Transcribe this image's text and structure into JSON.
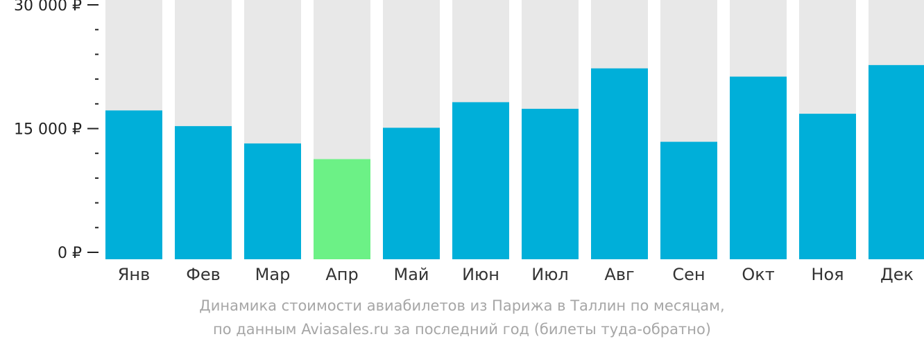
{
  "chart_data": {
    "type": "bar",
    "categories": [
      "Янв",
      "Фев",
      "Мар",
      "Апр",
      "Май",
      "Июн",
      "Июл",
      "Авг",
      "Сен",
      "Окт",
      "Ноя",
      "Дек"
    ],
    "values": [
      17200,
      15300,
      13200,
      11300,
      15100,
      18200,
      17400,
      22300,
      13400,
      21300,
      16800,
      22700
    ],
    "ylim": [
      0,
      30000
    ],
    "yticks": [
      {
        "value": 0,
        "label": "0 ₽"
      },
      {
        "value": 15000,
        "label": "15 000 ₽"
      },
      {
        "value": 30000,
        "label": "30 000 ₽"
      }
    ],
    "minor_tick_step": 3000,
    "highlight_index": 3,
    "colors": {
      "bar": "#00afd9",
      "highlight": "#6cf186",
      "track": "#e8e8e8",
      "axis": "#222222"
    },
    "grid": false,
    "legend": "none"
  },
  "caption": {
    "line1": "Динамика стоимости авиабилетов из Парижа в Таллин по месяцам,",
    "line2": "по данным Aviasales.ru за последний год (билеты туда-обратно)"
  }
}
